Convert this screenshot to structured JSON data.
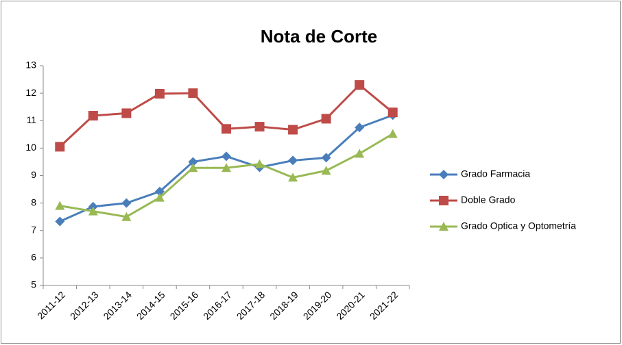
{
  "chart_data": {
    "type": "line",
    "title": "Nota de Corte",
    "categories": [
      "2011-12",
      "2012-13",
      "2013-14",
      "2014-15",
      "2015-16",
      "2016-17",
      "2017-18",
      "2018-19",
      "2019-20",
      "2020-21",
      "2021-22"
    ],
    "series": [
      {
        "name": "Grado Farmacia",
        "color": "#4a7ebb",
        "marker": "diamond",
        "values": [
          7.33,
          7.87,
          8.0,
          8.42,
          9.5,
          9.7,
          9.3,
          9.55,
          9.65,
          10.75,
          11.2
        ]
      },
      {
        "name": "Doble Grado",
        "color": "#be4b48",
        "marker": "square",
        "values": [
          10.05,
          11.18,
          11.27,
          11.98,
          12.0,
          10.7,
          10.78,
          10.67,
          11.07,
          12.3,
          11.3
        ]
      },
      {
        "name": "Grado Optica y Optometría",
        "color": "#98b954",
        "marker": "triangle",
        "values": [
          7.9,
          7.7,
          7.5,
          8.2,
          9.28,
          9.28,
          9.42,
          8.93,
          9.18,
          9.8,
          10.52
        ]
      }
    ],
    "ylim": [
      5,
      13
    ],
    "yticks": [
      5,
      6,
      7,
      8,
      9,
      10,
      11,
      12,
      13
    ],
    "grid": false,
    "legend": "right"
  }
}
